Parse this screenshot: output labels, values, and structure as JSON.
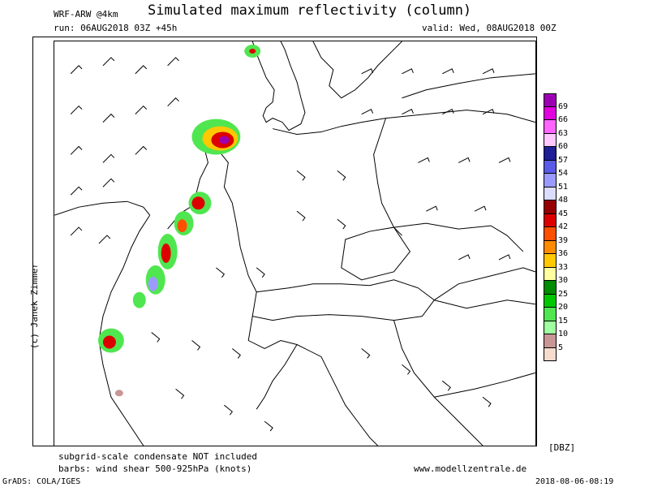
{
  "header": {
    "title": "Simulated maximum reflectivity (column)",
    "model": "WRF-ARW @4km",
    "run": "run: 06AUG2018 03Z +45h",
    "valid": "valid: Wed, 08AUG2018 00Z"
  },
  "copyright": "(c) Janek Zimmer",
  "footer": {
    "note1": "subgrid-scale condensate NOT included",
    "note2": "barbs: wind shear 500-925hPa (knots)",
    "website": "www.modellzentrale.de",
    "software": "GrADS: COLA/IGES",
    "timestamp": "2018-08-06-08:19"
  },
  "legend": {
    "unit": "[DBZ]",
    "levels": [
      "69",
      "66",
      "63",
      "60",
      "57",
      "54",
      "51",
      "48",
      "45",
      "42",
      "39",
      "36",
      "33",
      "30",
      "25",
      "20",
      "15",
      "10",
      "5"
    ],
    "colors": [
      "#9c00b4",
      "#e000e0",
      "#ff64ff",
      "#ffc8ff",
      "#1e1e96",
      "#5a5ae6",
      "#9b9bff",
      "#dcdcff",
      "#960000",
      "#dc0000",
      "#ff5000",
      "#ff8c00",
      "#ffc800",
      "#ffffa0",
      "#008c00",
      "#00c800",
      "#50e650",
      "#a0ffa0",
      "#c89696",
      "#f5dccd"
    ]
  },
  "map": {
    "icon": "europe-map-with-wind-barbs"
  }
}
